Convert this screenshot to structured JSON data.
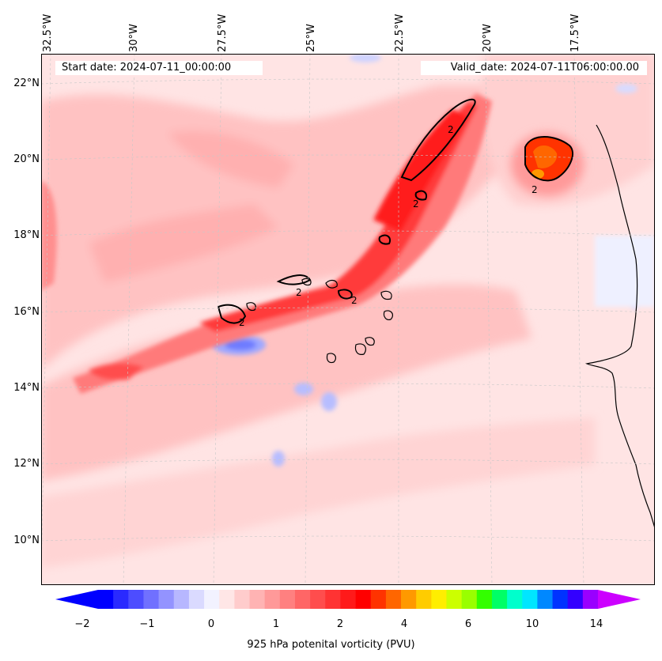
{
  "map": {
    "start_date": "Start date: 2024-07-11_00:00:00",
    "valid_date": "Valid_date: 2024-07-11T06:00:00.00",
    "lon_labels": [
      "32.5°W",
      "30°W",
      "27.5°W",
      "25°W",
      "22.5°W",
      "20°W",
      "17.5°W"
    ],
    "lat_labels": [
      "22°N",
      "20°N",
      "18°N",
      "16°N",
      "14°N",
      "12°N",
      "10°N"
    ],
    "contour_level": "2",
    "colors": {
      "background_field": "#ffe4e4",
      "positive_strong": "#ff1a1a",
      "positive_peak": "#ff6600",
      "negative": "#9fa8ff",
      "coastline": "#000000"
    }
  },
  "colorbar": {
    "label": "925 hPa potenital vorticity (PVU)",
    "ticks": [
      "−2",
      "−1",
      "0",
      "1",
      "2",
      "4",
      "6",
      "10",
      "14"
    ],
    "colors": [
      "#0000ff",
      "#2a2aff",
      "#4d4dff",
      "#7070ff",
      "#9393ff",
      "#b7b7ff",
      "#dadaff",
      "#f2f2ff",
      "#ffe6e6",
      "#ffcccc",
      "#ffb3b3",
      "#ff9999",
      "#ff8080",
      "#ff6666",
      "#ff4d4d",
      "#ff3333",
      "#ff1a1a",
      "#ff0000",
      "#ff3300",
      "#ff6600",
      "#ff9900",
      "#ffcc00",
      "#ffee00",
      "#ccff00",
      "#99ff00",
      "#33ff00",
      "#00ff66",
      "#00ffcc",
      "#00e6ff",
      "#0088ff",
      "#0033ff",
      "#3300ff",
      "#9900ff"
    ],
    "extend_low_color": "#0000ff",
    "extend_high_color": "#cc00ff"
  }
}
